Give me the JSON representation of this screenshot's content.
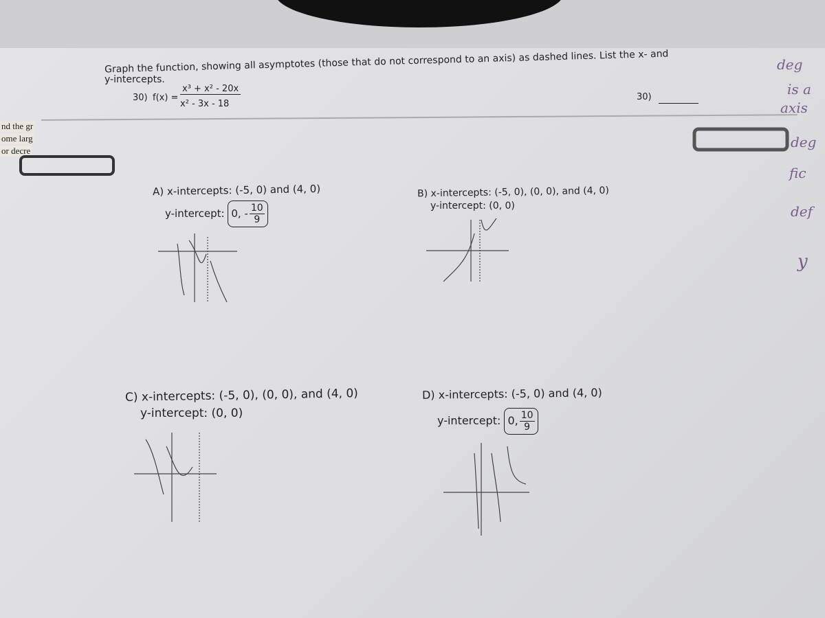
{
  "header": {
    "instructions_line1": "Graph the function, showing all asymptotes (those that do not correspond to an axis) as dashed lines. List the x- and",
    "instructions_line2": "y-intercepts.",
    "problem_number": "30)",
    "function_label": "f(x) =",
    "numerator": "x³ + x² - 20x",
    "denominator": "x² - 3x - 18",
    "answer_label": "30)"
  },
  "side_text": [
    "nd the gr",
    "ome larg",
    "or decre"
  ],
  "handwriting": [
    "deg",
    "is a",
    "axis",
    "deg",
    "fic",
    "def",
    "y"
  ],
  "options": [
    {
      "x_intercepts": "A) x-intercepts: (-5, 0) and (4, 0)",
      "y_intercept_label": "y-intercept:",
      "y_intercept_prefix": "0, -",
      "y_numerator": "10",
      "y_denominator": "9"
    },
    {
      "x_intercepts": "B) x-intercepts: (-5, 0), (0, 0), and (4, 0)",
      "y_intercept": "y-intercept: (0, 0)"
    },
    {
      "x_intercepts": "C) x-intercepts: (-5, 0), (0, 0), and (4, 0)",
      "y_intercept": "y-intercept: (0, 0)"
    },
    {
      "x_intercepts": "D) x-intercepts: (-5, 0) and (4, 0)",
      "y_intercept_label": "y-intercept:",
      "y_intercept_prefix": "0,",
      "y_numerator": "10",
      "y_denominator": "9"
    }
  ]
}
